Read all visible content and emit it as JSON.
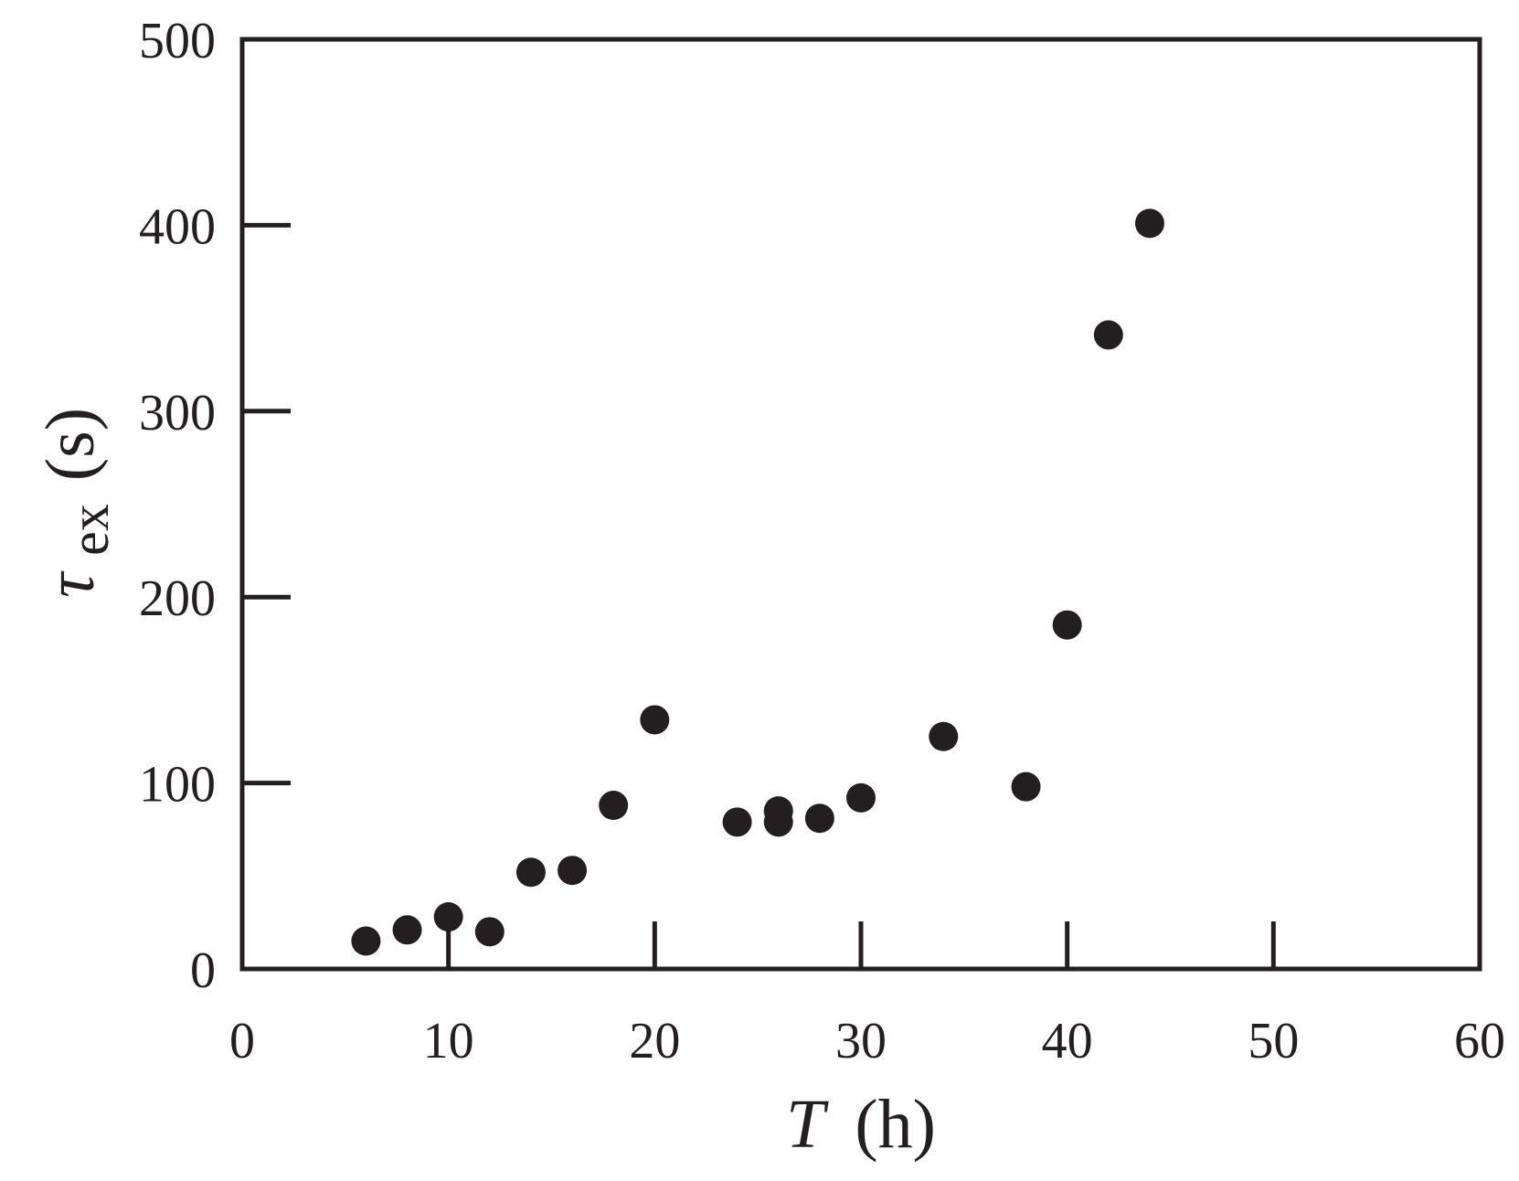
{
  "chart_data": {
    "type": "scatter",
    "title": "",
    "xlabel_var": "T",
    "xlabel_unit": "(h)",
    "ylabel_var": "τ",
    "ylabel_sub": "ex",
    "ylabel_unit": "(s)",
    "xlim": [
      0,
      60
    ],
    "ylim": [
      0,
      500
    ],
    "xticks": [
      0,
      10,
      20,
      30,
      40,
      50,
      60
    ],
    "yticks": [
      0,
      100,
      200,
      300,
      400,
      500
    ],
    "xtick_labels": [
      "0",
      "10",
      "20",
      "30",
      "40",
      "50",
      "60"
    ],
    "ytick_labels": [
      "0",
      "100",
      "200",
      "300",
      "400",
      "500"
    ],
    "grid": false,
    "marker_color": "#231f20",
    "points": [
      {
        "x": 6,
        "y": 15
      },
      {
        "x": 8,
        "y": 21
      },
      {
        "x": 10,
        "y": 28
      },
      {
        "x": 12,
        "y": 20
      },
      {
        "x": 14,
        "y": 52
      },
      {
        "x": 16,
        "y": 53
      },
      {
        "x": 18,
        "y": 88
      },
      {
        "x": 20,
        "y": 134
      },
      {
        "x": 24,
        "y": 79
      },
      {
        "x": 26,
        "y": 85
      },
      {
        "x": 26,
        "y": 79
      },
      {
        "x": 28,
        "y": 81
      },
      {
        "x": 30,
        "y": 92
      },
      {
        "x": 34,
        "y": 125
      },
      {
        "x": 38,
        "y": 98
      },
      {
        "x": 40,
        "y": 185
      },
      {
        "x": 42,
        "y": 341
      },
      {
        "x": 44,
        "y": 401
      }
    ]
  }
}
